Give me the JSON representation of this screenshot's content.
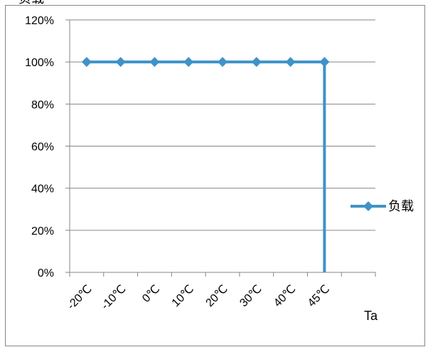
{
  "chart_data": {
    "type": "line",
    "ylabel": "负载",
    "xlabel": "Ta",
    "categories": [
      "-20℃",
      "-10℃",
      "0℃",
      "10℃",
      "20℃",
      "30℃",
      "40℃",
      "45℃"
    ],
    "series": [
      {
        "name": "负载",
        "values": [
          100,
          100,
          100,
          100,
          100,
          100,
          100,
          100
        ]
      }
    ],
    "drop_after_last": {
      "from": 100,
      "to": 0
    },
    "yticks": [
      "0%",
      "20%",
      "40%",
      "60%",
      "80%",
      "100%",
      "120%"
    ],
    "ylim": [
      0,
      120
    ],
    "grid": true,
    "legend_position": "right",
    "colors": {
      "series": "#3f93c8",
      "grid": "#868686",
      "axis": "#868686"
    }
  }
}
